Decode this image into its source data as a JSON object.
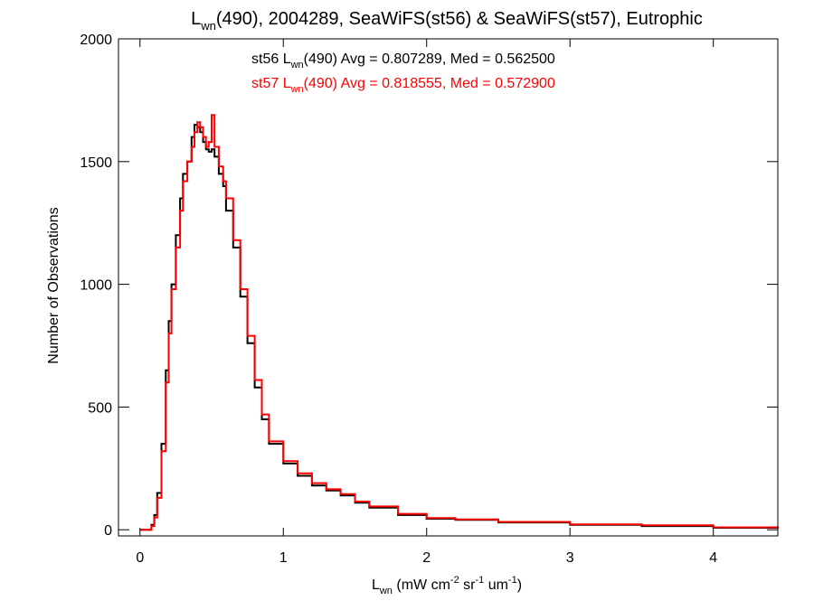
{
  "chart_data": {
    "type": "line",
    "title": {
      "prefix": "L",
      "sub": "wn",
      "suffix": "(490), 2004289, SeaWiFS(st56) & SeaWiFS(st57), Eutrophic"
    },
    "xlabel": {
      "parts": [
        {
          "t": "L",
          "s": ""
        },
        {
          "t": "wn",
          "s": "sub"
        },
        {
          "t": " (mW cm",
          "s": ""
        },
        {
          "t": "-2",
          "s": "sup"
        },
        {
          "t": " sr",
          "s": ""
        },
        {
          "t": "-1",
          "s": "sup"
        },
        {
          "t": " um",
          "s": ""
        },
        {
          "t": "-1",
          "s": "sup"
        },
        {
          "t": ")",
          "s": ""
        }
      ]
    },
    "ylabel": "Number of Observations",
    "xlim": [
      -0.15,
      4.45
    ],
    "ylim": [
      -25,
      2000
    ],
    "x_ticks": [
      0,
      1,
      2,
      3,
      4
    ],
    "x_tick_labels": [
      "0",
      "1",
      "2",
      "3",
      "4"
    ],
    "y_ticks": [
      0,
      500,
      1000,
      1500,
      2000
    ],
    "y_tick_labels": [
      "0",
      "500",
      "1000",
      "1500",
      "2000"
    ],
    "grid": false,
    "annotations": [
      {
        "prefix": "st56 L",
        "sub": "wn",
        "suffix": "(490) Avg = 0.807289, Med = 0.562500",
        "color": "#000000"
      },
      {
        "prefix": "st57 L",
        "sub": "wn",
        "suffix": "(490) Avg = 0.818555, Med = 0.572900",
        "color": "#ff0000"
      }
    ],
    "series": [
      {
        "color": "#000000",
        "x": [
          0.0,
          0.05,
          0.08,
          0.1,
          0.12,
          0.15,
          0.18,
          0.2,
          0.22,
          0.25,
          0.28,
          0.3,
          0.33,
          0.36,
          0.38,
          0.4,
          0.42,
          0.44,
          0.46,
          0.48,
          0.5,
          0.52,
          0.55,
          0.58,
          0.6,
          0.65,
          0.7,
          0.75,
          0.8,
          0.85,
          0.9,
          1.0,
          1.1,
          1.2,
          1.3,
          1.4,
          1.5,
          1.6,
          1.8,
          2.0,
          2.2,
          2.5,
          3.0,
          3.5,
          4.0,
          4.45
        ],
        "y": [
          0,
          0,
          20,
          60,
          150,
          350,
          650,
          850,
          1000,
          1200,
          1350,
          1450,
          1500,
          1600,
          1650,
          1640,
          1620,
          1580,
          1550,
          1540,
          1550,
          1520,
          1450,
          1400,
          1300,
          1150,
          950,
          760,
          580,
          450,
          350,
          270,
          220,
          180,
          160,
          140,
          110,
          90,
          60,
          45,
          40,
          30,
          20,
          15,
          8,
          5
        ]
      },
      {
        "color": "#ff0000",
        "x": [
          0.0,
          0.05,
          0.08,
          0.1,
          0.12,
          0.15,
          0.18,
          0.2,
          0.22,
          0.25,
          0.28,
          0.3,
          0.33,
          0.36,
          0.38,
          0.4,
          0.42,
          0.44,
          0.46,
          0.48,
          0.5,
          0.52,
          0.55,
          0.58,
          0.6,
          0.65,
          0.7,
          0.75,
          0.8,
          0.85,
          0.9,
          1.0,
          1.1,
          1.2,
          1.3,
          1.4,
          1.5,
          1.6,
          1.8,
          2.0,
          2.2,
          2.5,
          3.0,
          3.5,
          4.0,
          4.45
        ],
        "y": [
          0,
          0,
          15,
          50,
          130,
          320,
          600,
          800,
          980,
          1150,
          1300,
          1420,
          1500,
          1560,
          1620,
          1660,
          1640,
          1600,
          1560,
          1580,
          1690,
          1560,
          1480,
          1420,
          1350,
          1180,
          980,
          790,
          610,
          470,
          360,
          280,
          230,
          190,
          165,
          145,
          115,
          95,
          65,
          48,
          42,
          32,
          22,
          18,
          10,
          6
        ]
      }
    ]
  }
}
